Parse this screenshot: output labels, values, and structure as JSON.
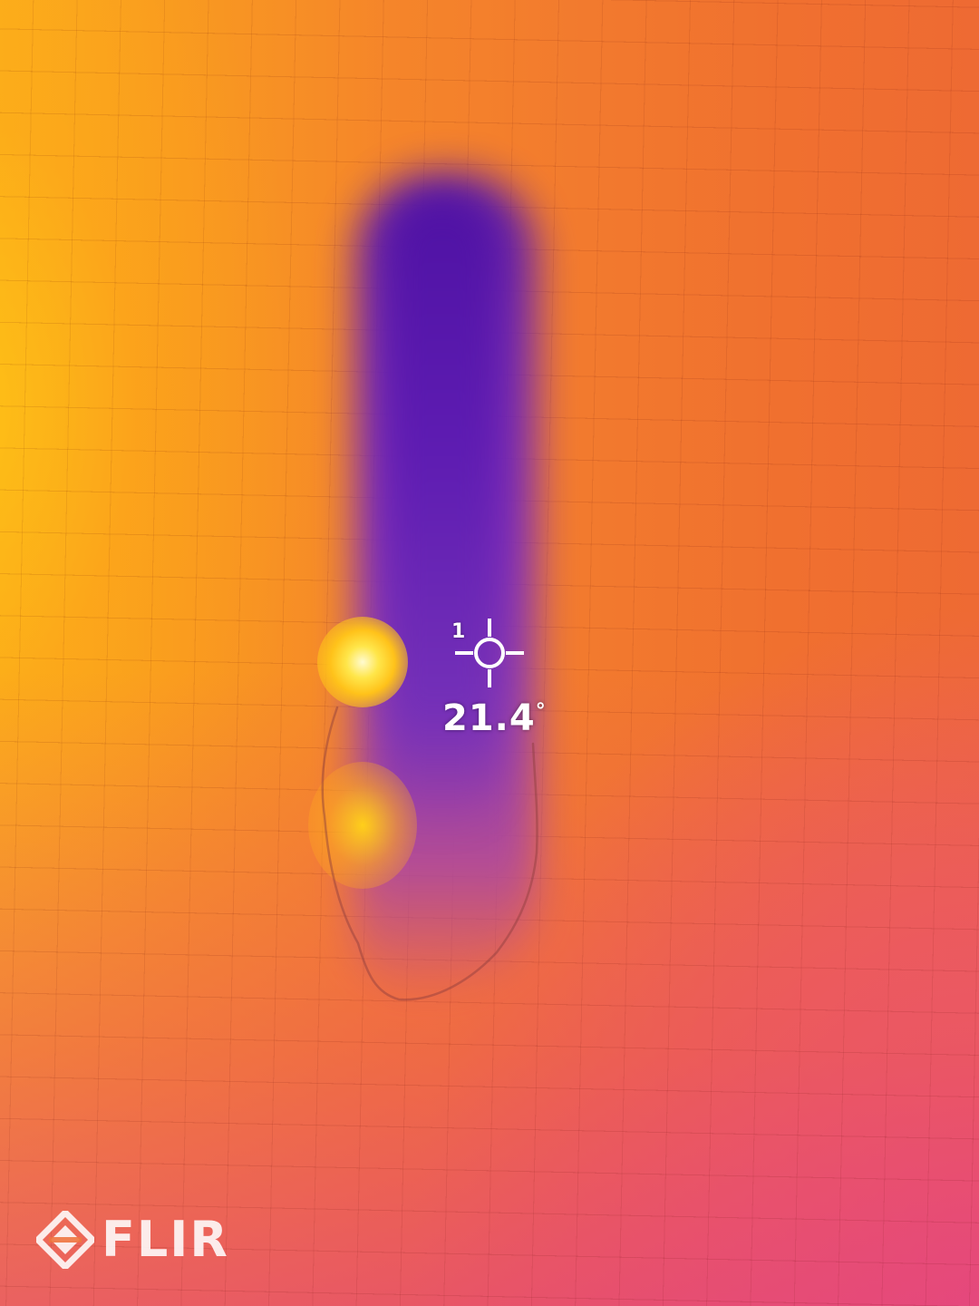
{
  "thermal_image": {
    "palette": "iron",
    "colors": {
      "hot": "#ffe64a",
      "warm": "#f5852a",
      "mid": "#e8478a",
      "cold": "#5a1aa8"
    }
  },
  "spot_meter": {
    "index": "1",
    "temperature": "21.4",
    "unit": "°",
    "icon": "crosshair-icon"
  },
  "brand": {
    "logo_text": "FLIR",
    "icon": "flir-diamond-icon"
  }
}
